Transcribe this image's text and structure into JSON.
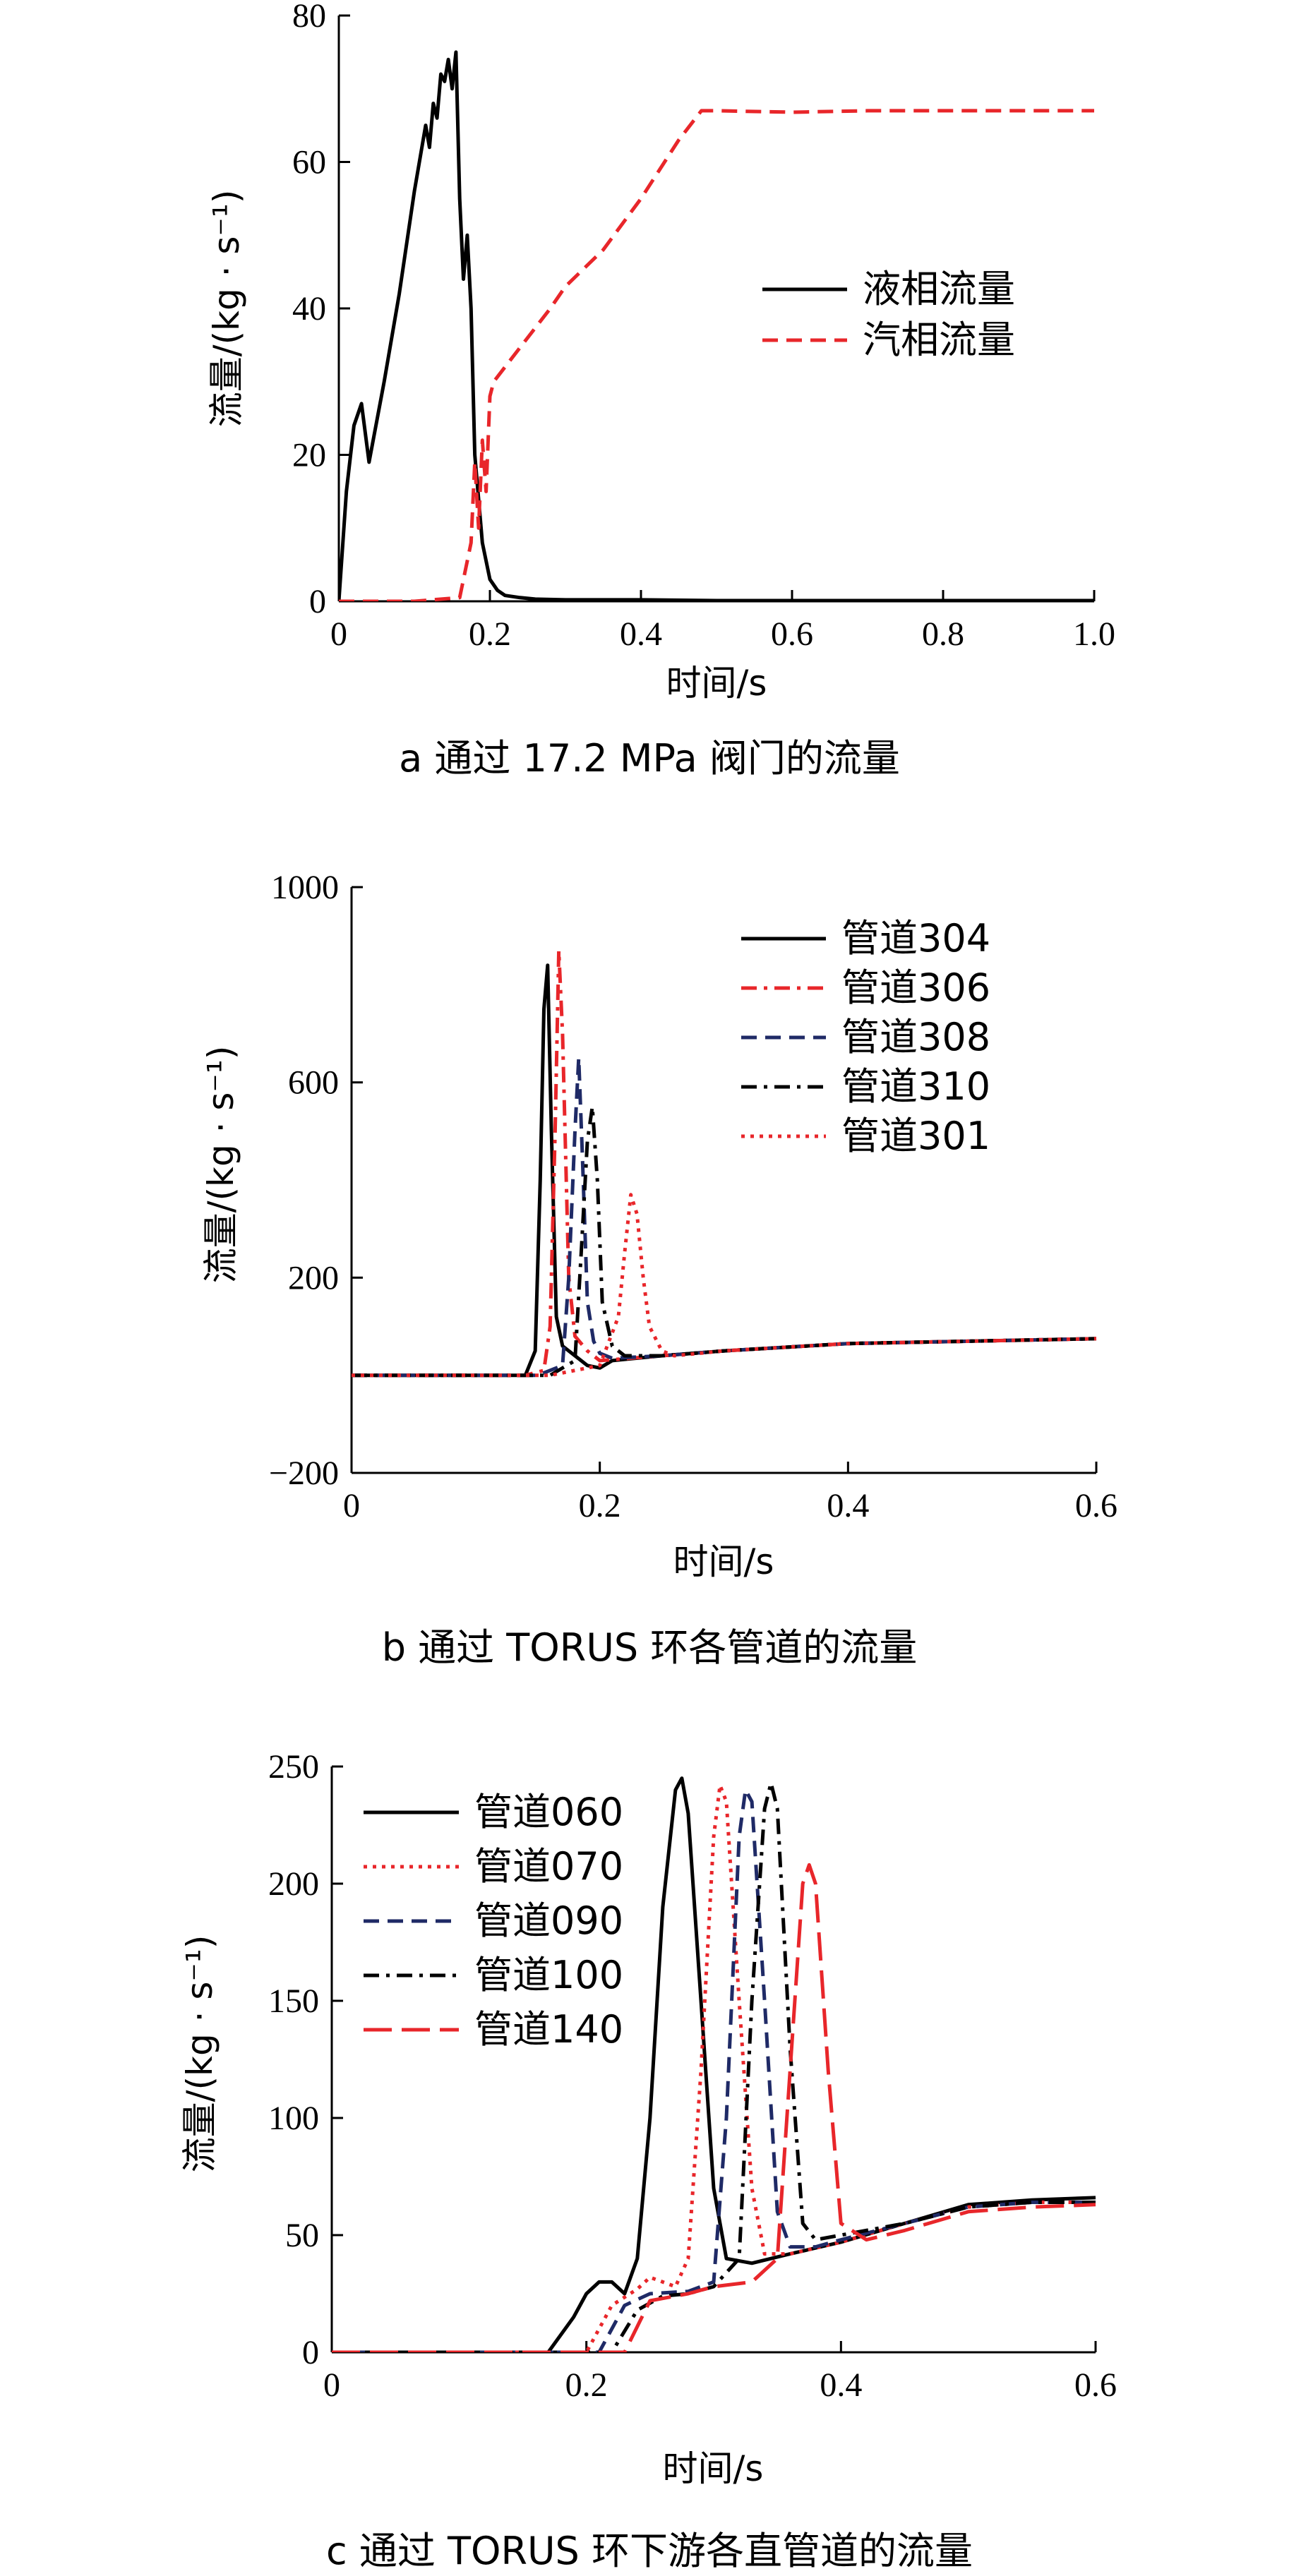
{
  "chart_data": [
    {
      "id": "a",
      "type": "line",
      "caption": "a  通过 17.2 MPa 阀门的流量",
      "xlabel": "时间/s",
      "ylabel": "流量/(kg · s⁻¹)",
      "xlim": [
        0,
        1.0
      ],
      "ylim": [
        0,
        80
      ],
      "xticks": [
        "0",
        "0.2",
        "0.4",
        "0.6",
        "0.8",
        "1.0"
      ],
      "yticks": [
        "0",
        "20",
        "40",
        "60",
        "80"
      ],
      "legend_position": "center-right",
      "series": [
        {
          "name": "液相流量",
          "color": "#000000",
          "dash": "solid",
          "x": [
            0,
            0.01,
            0.02,
            0.03,
            0.04,
            0.06,
            0.08,
            0.1,
            0.115,
            0.12,
            0.125,
            0.13,
            0.135,
            0.14,
            0.145,
            0.15,
            0.155,
            0.16,
            0.165,
            0.17,
            0.175,
            0.18,
            0.19,
            0.2,
            0.21,
            0.22,
            0.24,
            0.26,
            0.3,
            0.4,
            0.5,
            0.6,
            0.8,
            1.0
          ],
          "y": [
            0,
            15,
            24,
            27,
            19,
            30,
            42,
            56,
            65,
            62,
            68,
            66,
            72,
            71,
            74,
            70,
            75,
            55,
            44,
            50,
            40,
            20,
            8,
            3,
            1.5,
            0.8,
            0.5,
            0.3,
            0.2,
            0.2,
            0.1,
            0.1,
            0.1,
            0.1
          ]
        },
        {
          "name": "汽相流量",
          "color": "#e8262a",
          "dash": "dashed",
          "x": [
            0,
            0.1,
            0.16,
            0.175,
            0.18,
            0.185,
            0.19,
            0.195,
            0.2,
            0.205,
            0.22,
            0.25,
            0.28,
            0.3,
            0.35,
            0.4,
            0.45,
            0.48,
            0.5,
            0.6,
            0.7,
            0.8,
            1.0
          ],
          "y": [
            0,
            0,
            0.5,
            8,
            19,
            10,
            22,
            15,
            28,
            30,
            32,
            36,
            40,
            43,
            48,
            55,
            63,
            67,
            67,
            66.8,
            67,
            67,
            67
          ]
        }
      ]
    },
    {
      "id": "b",
      "type": "line",
      "caption": "b  通过 TORUS 环各管道的流量",
      "xlabel": "时间/s",
      "ylabel": "流量/(kg · s⁻¹)",
      "xlim": [
        0,
        0.6
      ],
      "ylim": [
        -200,
        1000
      ],
      "xticks": [
        "0",
        "0.2",
        "0.4",
        "0.6"
      ],
      "yticks": [
        "−200",
        "200",
        "600",
        "1000"
      ],
      "ytick_values": [
        -200,
        200,
        600,
        1000
      ],
      "legend_position": "top-right",
      "series": [
        {
          "name": "管道304",
          "color": "#000000",
          "dash": "solid",
          "x": [
            0,
            0.14,
            0.148,
            0.152,
            0.155,
            0.158,
            0.161,
            0.165,
            0.17,
            0.18,
            0.19,
            0.2,
            0.21,
            0.25,
            0.3,
            0.4,
            0.5,
            0.6
          ],
          "y": [
            0,
            0,
            50,
            400,
            750,
            840,
            500,
            120,
            60,
            40,
            20,
            15,
            30,
            40,
            50,
            65,
            70,
            75
          ]
        },
        {
          "name": "管道306",
          "color": "#e8262a",
          "dash": "dashdot",
          "x": [
            0,
            0.14,
            0.155,
            0.16,
            0.164,
            0.167,
            0.17,
            0.175,
            0.18,
            0.19,
            0.2,
            0.25,
            0.3,
            0.4,
            0.5,
            0.6
          ],
          "y": [
            0,
            0,
            10,
            100,
            500,
            870,
            700,
            200,
            80,
            50,
            30,
            40,
            50,
            65,
            70,
            75
          ]
        },
        {
          "name": "管道308",
          "color": "#1f2a66",
          "dash": "dashed",
          "x": [
            0,
            0.15,
            0.17,
            0.175,
            0.18,
            0.183,
            0.186,
            0.19,
            0.195,
            0.2,
            0.21,
            0.25,
            0.3,
            0.4,
            0.5,
            0.6
          ],
          "y": [
            0,
            0,
            20,
            200,
            500,
            650,
            450,
            150,
            70,
            45,
            35,
            40,
            50,
            65,
            70,
            75
          ]
        },
        {
          "name": "管道310",
          "color": "#000000",
          "dash": "dashdot",
          "x": [
            0,
            0.16,
            0.18,
            0.185,
            0.19,
            0.194,
            0.198,
            0.202,
            0.21,
            0.22,
            0.25,
            0.3,
            0.4,
            0.5,
            0.6
          ],
          "y": [
            0,
            0,
            30,
            250,
            480,
            550,
            400,
            150,
            60,
            40,
            40,
            50,
            65,
            70,
            75
          ]
        },
        {
          "name": "管道301",
          "color": "#e8262a",
          "dash": "dotted",
          "x": [
            0,
            0.16,
            0.2,
            0.215,
            0.22,
            0.225,
            0.23,
            0.235,
            0.24,
            0.25,
            0.26,
            0.3,
            0.4,
            0.5,
            0.6
          ],
          "y": [
            0,
            0,
            20,
            120,
            250,
            370,
            330,
            200,
            100,
            50,
            40,
            50,
            65,
            70,
            75
          ]
        }
      ]
    },
    {
      "id": "c",
      "type": "line",
      "caption": "c  通过 TORUS 环下游各直管道的流量",
      "xlabel": "时间/s",
      "ylabel": "流量/(kg · s⁻¹)",
      "xlim": [
        0,
        0.6
      ],
      "ylim": [
        0,
        250
      ],
      "xticks": [
        "0",
        "0.2",
        "0.4",
        "0.6"
      ],
      "yticks": [
        "0",
        "50",
        "100",
        "150",
        "200",
        "250"
      ],
      "legend_position": "top-left",
      "series": [
        {
          "name": "管道060",
          "color": "#000000",
          "dash": "solid",
          "x": [
            0,
            0.17,
            0.19,
            0.2,
            0.21,
            0.22,
            0.23,
            0.24,
            0.25,
            0.26,
            0.27,
            0.275,
            0.28,
            0.29,
            0.3,
            0.31,
            0.33,
            0.36,
            0.4,
            0.45,
            0.5,
            0.55,
            0.6
          ],
          "y": [
            0,
            0,
            15,
            25,
            30,
            30,
            25,
            40,
            100,
            190,
            240,
            245,
            230,
            150,
            70,
            40,
            38,
            42,
            47,
            55,
            63,
            65,
            66
          ]
        },
        {
          "name": "管道070",
          "color": "#e8262a",
          "dash": "dotted",
          "x": [
            0,
            0.2,
            0.22,
            0.24,
            0.25,
            0.26,
            0.27,
            0.28,
            0.29,
            0.3,
            0.305,
            0.31,
            0.32,
            0.33,
            0.34,
            0.36,
            0.4,
            0.45,
            0.5,
            0.55,
            0.6
          ],
          "y": [
            0,
            0,
            20,
            27,
            32,
            30,
            28,
            40,
            120,
            220,
            242,
            235,
            150,
            70,
            42,
            42,
            47,
            55,
            62,
            64,
            64
          ]
        },
        {
          "name": "管道090",
          "color": "#1f2a66",
          "dash": "dashed",
          "x": [
            0,
            0.21,
            0.23,
            0.25,
            0.28,
            0.3,
            0.31,
            0.32,
            0.325,
            0.33,
            0.34,
            0.35,
            0.36,
            0.38,
            0.4,
            0.45,
            0.5,
            0.55,
            0.6
          ],
          "y": [
            0,
            0,
            20,
            25,
            26,
            30,
            100,
            220,
            240,
            235,
            150,
            60,
            45,
            45,
            48,
            55,
            62,
            64,
            64
          ]
        },
        {
          "name": "管道100",
          "color": "#000000",
          "dash": "dashdot",
          "x": [
            0,
            0.22,
            0.24,
            0.26,
            0.28,
            0.3,
            0.32,
            0.33,
            0.34,
            0.345,
            0.35,
            0.36,
            0.37,
            0.38,
            0.4,
            0.45,
            0.5,
            0.55,
            0.6
          ],
          "y": [
            0,
            0,
            18,
            24,
            25,
            28,
            40,
            150,
            232,
            243,
            232,
            130,
            55,
            48,
            50,
            55,
            62,
            64,
            64
          ]
        },
        {
          "name": "管道140",
          "color": "#e8262a",
          "dash": "longdash",
          "x": [
            0,
            0.23,
            0.25,
            0.28,
            0.3,
            0.33,
            0.35,
            0.36,
            0.37,
            0.375,
            0.38,
            0.39,
            0.4,
            0.42,
            0.45,
            0.5,
            0.55,
            0.6
          ],
          "y": [
            0,
            0,
            22,
            25,
            28,
            30,
            40,
            120,
            200,
            208,
            200,
            120,
            55,
            48,
            52,
            60,
            62,
            63
          ]
        }
      ]
    }
  ]
}
